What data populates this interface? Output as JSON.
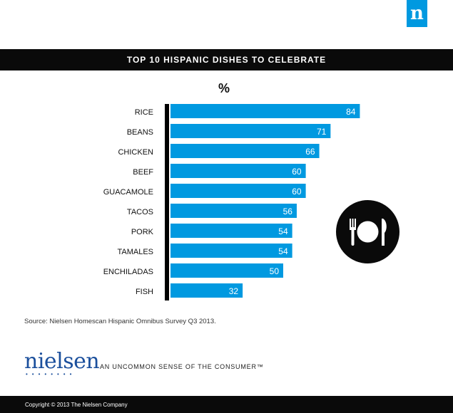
{
  "brand_mark": "n",
  "chart_data": {
    "type": "bar",
    "orientation": "horizontal",
    "title": "TOP 10 HISPANIC DISHES TO CELEBRATE",
    "unit_label": "%",
    "categories": [
      "RICE",
      "BEANS",
      "CHICKEN",
      "BEEF",
      "GUACAMOLE",
      "TACOS",
      "PORK",
      "TAMALES",
      "ENCHILADAS",
      "FISH"
    ],
    "values": [
      84,
      71,
      66,
      60,
      60,
      56,
      54,
      54,
      50,
      32
    ],
    "bar_color": "#0099e0",
    "axis_color": "#000000",
    "xlim": [
      0,
      100
    ]
  },
  "source": "Source: Nielsen Homescan Hispanic Omnibus Survey Q3 2013.",
  "brand_name": "nielsen",
  "tagline": "AN UNCOMMON SENSE OF THE CONSUMER™",
  "copyright": "Copyright © 2013 The Nielsen Company",
  "icons": {
    "plate": "plate-fork-knife-icon",
    "logo": "nielsen-logo-icon"
  }
}
